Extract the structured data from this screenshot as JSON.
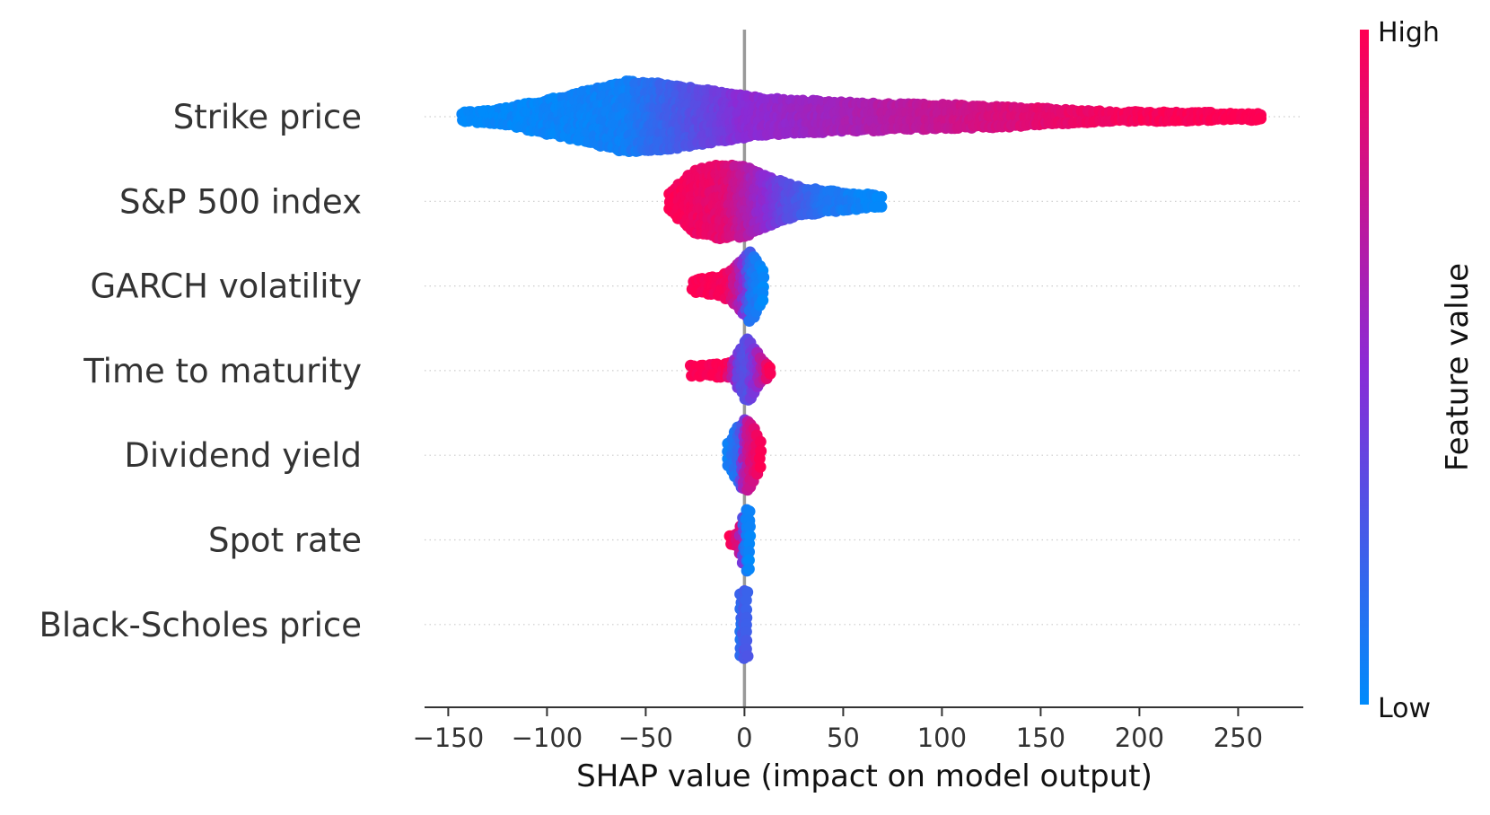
{
  "chart_data": {
    "type": "scatter",
    "subtype": "shap-beeswarm",
    "title": "",
    "xlabel": "SHAP value (impact on model output)",
    "xlim": [
      -162,
      283
    ],
    "xticks": [
      -150,
      -100,
      -50,
      0,
      50,
      100,
      150,
      200,
      250
    ],
    "xtick_labels": [
      "−150",
      "−100",
      "−50",
      "0",
      "50",
      "100",
      "150",
      "200",
      "250"
    ],
    "zero_line": true,
    "grid": "dotted horizontal per feature",
    "colorbar": {
      "label": "Feature value",
      "high_label": "High",
      "low_label": "Low",
      "low_color": "#008bfb",
      "high_color": "#ff0052"
    },
    "features": [
      {
        "name": "Strike price",
        "min": -143,
        "max": 263,
        "profile": [
          [
            -143,
            0.08
          ],
          [
            -120,
            0.22
          ],
          [
            -95,
            0.5
          ],
          [
            -75,
            0.75
          ],
          [
            -60,
            0.95
          ],
          [
            -40,
            0.9
          ],
          [
            -20,
            0.72
          ],
          [
            0,
            0.55
          ],
          [
            20,
            0.45
          ],
          [
            40,
            0.4
          ],
          [
            60,
            0.36
          ],
          [
            80,
            0.32
          ],
          [
            100,
            0.3
          ],
          [
            120,
            0.27
          ],
          [
            140,
            0.24
          ],
          [
            160,
            0.16
          ],
          [
            180,
            0.12
          ],
          [
            200,
            0.1
          ],
          [
            230,
            0.08
          ],
          [
            263,
            0.06
          ]
        ],
        "color_points": [
          [
            -143,
            0.0
          ],
          [
            -60,
            0.06
          ],
          [
            0,
            0.5
          ],
          [
            50,
            0.62
          ],
          [
            100,
            0.76
          ],
          [
            150,
            0.88
          ],
          [
            200,
            0.97
          ],
          [
            263,
            1.0
          ]
        ]
      },
      {
        "name": "S&P 500 index",
        "min": -38,
        "max": 70,
        "profile": [
          [
            -38,
            0.2
          ],
          [
            -25,
            0.85
          ],
          [
            -12,
            1.0
          ],
          [
            0,
            0.95
          ],
          [
            12,
            0.65
          ],
          [
            25,
            0.4
          ],
          [
            40,
            0.28
          ],
          [
            55,
            0.2
          ],
          [
            70,
            0.12
          ]
        ],
        "color_points": [
          [
            -38,
            1.0
          ],
          [
            -10,
            0.88
          ],
          [
            5,
            0.6
          ],
          [
            20,
            0.35
          ],
          [
            40,
            0.12
          ],
          [
            70,
            0.0
          ]
        ]
      },
      {
        "name": "GARCH volatility",
        "min": -26,
        "max": 10,
        "profile": [
          [
            -26,
            0.12
          ],
          [
            -15,
            0.22
          ],
          [
            -8,
            0.35
          ],
          [
            -3,
            0.6
          ],
          [
            0,
            0.8
          ],
          [
            3,
            0.95
          ],
          [
            6,
            0.7
          ],
          [
            10,
            0.35
          ]
        ],
        "color_points": [
          [
            -26,
            1.0
          ],
          [
            -8,
            0.95
          ],
          [
            -2,
            0.65
          ],
          [
            3,
            0.15
          ],
          [
            10,
            0.0
          ]
        ]
      },
      {
        "name": "Time to maturity",
        "min": -27,
        "max": 13,
        "profile": [
          [
            -27,
            0.12
          ],
          [
            -15,
            0.14
          ],
          [
            -6,
            0.2
          ],
          [
            -2,
            0.55
          ],
          [
            1,
            0.9
          ],
          [
            4,
            0.7
          ],
          [
            8,
            0.35
          ],
          [
            13,
            0.12
          ]
        ],
        "color_points": [
          [
            -27,
            1.0
          ],
          [
            -8,
            0.98
          ],
          [
            -2,
            0.35
          ],
          [
            1,
            0.3
          ],
          [
            5,
            0.45
          ],
          [
            13,
            1.0
          ]
        ]
      },
      {
        "name": "Dividend yield",
        "min": -8,
        "max": 8,
        "profile": [
          [
            -8,
            0.3
          ],
          [
            -5,
            0.6
          ],
          [
            -2,
            0.85
          ],
          [
            1,
            1.0
          ],
          [
            4,
            0.8
          ],
          [
            8,
            0.35
          ]
        ],
        "color_points": [
          [
            -8,
            0.05
          ],
          [
            -2,
            0.2
          ],
          [
            1,
            0.7
          ],
          [
            8,
            1.0
          ]
        ]
      },
      {
        "name": "Spot rate",
        "min": -7,
        "max": 4,
        "profile": [
          [
            -7,
            0.12
          ],
          [
            -3,
            0.2
          ],
          [
            0,
            0.75
          ],
          [
            2,
            0.9
          ],
          [
            4,
            0.5
          ]
        ],
        "color_points": [
          [
            -7,
            1.0
          ],
          [
            -2,
            0.8
          ],
          [
            0,
            0.1
          ],
          [
            4,
            0.0
          ]
        ]
      },
      {
        "name": "Black-Scholes price",
        "min": -2,
        "max": 2,
        "profile": [
          [
            -2,
            0.85
          ],
          [
            0,
            0.95
          ],
          [
            2,
            0.85
          ]
        ],
        "color_points": [
          [
            -2,
            0.15
          ],
          [
            0,
            0.3
          ],
          [
            2,
            0.2
          ]
        ]
      }
    ]
  }
}
